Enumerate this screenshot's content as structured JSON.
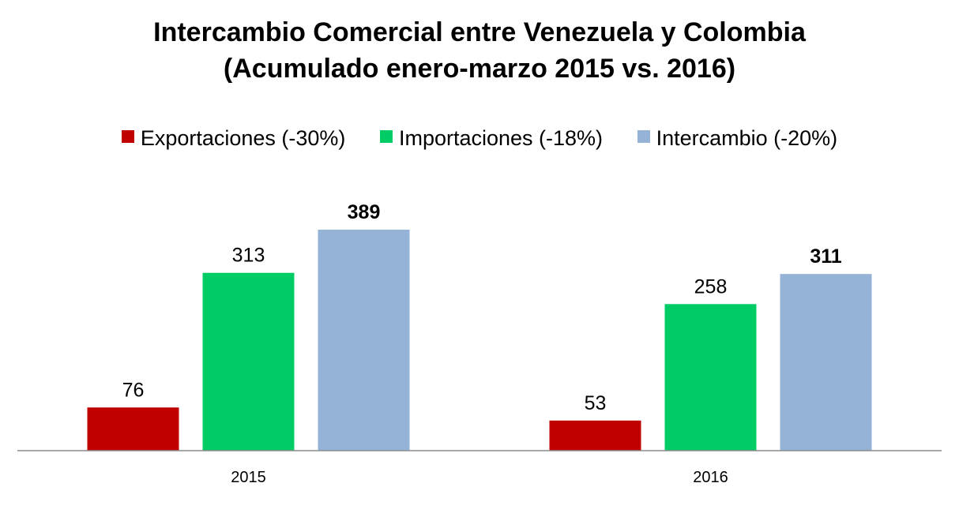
{
  "chart_data": {
    "type": "bar",
    "title": "Intercambio Comercial entre Venezuela y Colombia",
    "subtitle": "(Acumulado enero-marzo 2015 vs. 2016)",
    "categories": [
      "2015",
      "2016"
    ],
    "series": [
      {
        "name": "Exportaciones (-30%)",
        "color": "#c00000",
        "values": [
          76,
          53
        ],
        "bold_labels": false
      },
      {
        "name": "Importaciones (-18%)",
        "color": "#00cc66",
        "values": [
          313,
          258
        ],
        "bold_labels": false
      },
      {
        "name": "Intercambio (-20%)",
        "color": "#95b3d7",
        "values": [
          389,
          311
        ],
        "bold_labels": true
      }
    ],
    "ylim": [
      0,
      389
    ],
    "xlabel": "",
    "ylabel": "",
    "grid": false,
    "legend_position": "top",
    "data_labels": true
  }
}
